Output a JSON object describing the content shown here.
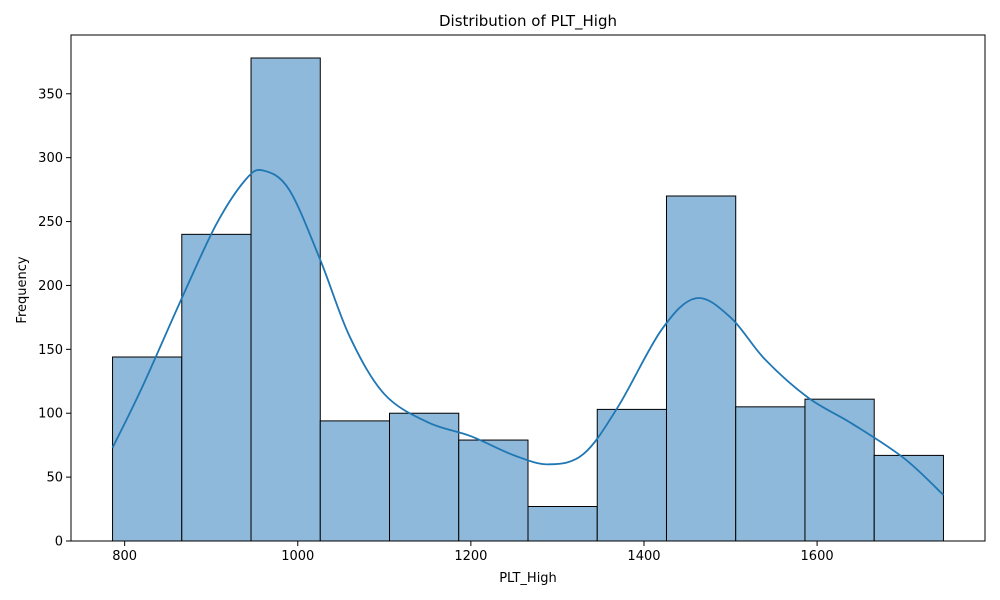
{
  "chart_data": {
    "type": "bar",
    "title": "Distribution of PLT_High",
    "xlabel": "PLT_High",
    "ylabel": "Frequency",
    "bins": [
      {
        "x0": 786,
        "x1": 866,
        "count": 144
      },
      {
        "x0": 866,
        "x1": 946,
        "count": 240
      },
      {
        "x0": 946,
        "x1": 1026,
        "count": 378
      },
      {
        "x0": 1026,
        "x1": 1106,
        "count": 94
      },
      {
        "x0": 1106,
        "x1": 1186,
        "count": 100
      },
      {
        "x0": 1186,
        "x1": 1266,
        "count": 79
      },
      {
        "x0": 1266,
        "x1": 1346,
        "count": 27
      },
      {
        "x0": 1346,
        "x1": 1426,
        "count": 103
      },
      {
        "x0": 1426,
        "x1": 1506,
        "count": 270
      },
      {
        "x0": 1506,
        "x1": 1586,
        "count": 105
      },
      {
        "x0": 1586,
        "x1": 1666,
        "count": 111
      },
      {
        "x0": 1666,
        "x1": 1746,
        "count": 67
      }
    ],
    "kde": {
      "x": [
        786,
        820,
        866,
        906,
        940,
        960,
        990,
        1026,
        1060,
        1100,
        1150,
        1200,
        1250,
        1290,
        1330,
        1370,
        1420,
        1460,
        1500,
        1540,
        1590,
        1640,
        1700,
        1746
      ],
      "y": [
        73,
        120,
        190,
        248,
        283,
        290,
        275,
        220,
        160,
        115,
        93,
        82,
        67,
        60,
        68,
        105,
        165,
        190,
        175,
        142,
        112,
        92,
        65,
        36
      ]
    },
    "xlim": [
      738,
      1794
    ],
    "ylim": [
      0,
      396
    ],
    "xticks": [
      800,
      1000,
      1200,
      1400,
      1600
    ],
    "yticks": [
      0,
      50,
      100,
      150,
      200,
      250,
      300,
      350
    ],
    "bar_color": "#8fb9da",
    "bar_edge_color": "#000000",
    "kde_color": "#1f77b4",
    "grid": false,
    "legend": "none"
  }
}
